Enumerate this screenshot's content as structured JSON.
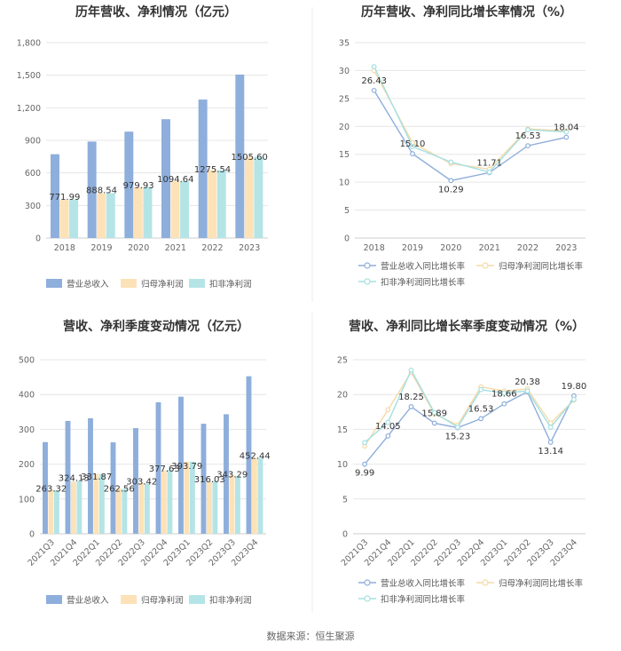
{
  "colors": {
    "revenue": "#8eaedb",
    "net_profit": "#fde2b8",
    "deducted_profit": "#b4e4e6",
    "revenue_line": "#8eaedb",
    "net_profit_line": "#f6d9a6",
    "deducted_profit_line": "#a4e0e3"
  },
  "source_text": "数据来源：恒生聚源",
  "chart_data": [
    {
      "type": "bar",
      "title": "历年营收、净利情况（亿元）",
      "categories": [
        "2018",
        "2019",
        "2020",
        "2021",
        "2022",
        "2023"
      ],
      "ylim": [
        0,
        1800
      ],
      "yticks": [
        0,
        300,
        600,
        900,
        1200,
        1500,
        1800
      ],
      "ytick_labels": [
        "0",
        "300",
        "600",
        "900",
        "1,200",
        "1,500",
        "1,800"
      ],
      "series": [
        {
          "name": "营业总收入",
          "values": [
            771.99,
            888.54,
            979.93,
            1094.64,
            1275.54,
            1505.6
          ]
        },
        {
          "name": "归母净利润",
          "values": [
            352,
            412,
            467,
            525,
            627,
            747
          ]
        },
        {
          "name": "扣非净利润",
          "values": [
            356,
            414,
            470,
            525,
            627,
            748
          ]
        }
      ],
      "data_labels": [
        "771.99",
        "888.54",
        "979.93",
        "1094.64",
        "1275.54",
        "1505.60"
      ]
    },
    {
      "type": "line",
      "title": "历年营收、净利同比增长率情况（%）",
      "categories": [
        "2018",
        "2019",
        "2020",
        "2021",
        "2022",
        "2023"
      ],
      "ylim": [
        0,
        35
      ],
      "yticks": [
        0,
        5,
        10,
        15,
        20,
        25,
        30,
        35
      ],
      "ytick_labels": [
        "0",
        "5",
        "10",
        "15",
        "20",
        "25",
        "30",
        "35"
      ],
      "series": [
        {
          "name": "营业总收入同比增长率",
          "values": [
            26.43,
            15.1,
            10.29,
            11.71,
            16.53,
            18.04
          ]
        },
        {
          "name": "归母净利润同比增长率",
          "values": [
            30.0,
            17.05,
            13.33,
            12.34,
            19.55,
            19.16
          ]
        },
        {
          "name": "扣非净利润同比增长率",
          "values": [
            30.7,
            16.4,
            13.6,
            11.8,
            19.4,
            19.0
          ]
        }
      ],
      "data_labels": [
        "26.43",
        "15.10",
        "10.29",
        "11.71",
        "16.53",
        "18.04"
      ]
    },
    {
      "type": "bar",
      "title": "营收、净利季度变动情况（亿元）",
      "categories": [
        "2021Q3",
        "2021Q4",
        "2022Q1",
        "2022Q2",
        "2022Q3",
        "2022Q4",
        "2023Q1",
        "2023Q2",
        "2023Q3",
        "2023Q4"
      ],
      "ylim": [
        0,
        500
      ],
      "yticks": [
        0,
        100,
        200,
        300,
        400,
        500
      ],
      "ytick_labels": [
        "0",
        "100",
        "200",
        "300",
        "400",
        "500"
      ],
      "series": [
        {
          "name": "营业总收入",
          "values": [
            263.32,
            324.13,
            331.87,
            262.56,
            303.42,
            377.63,
            393.79,
            316.03,
            343.29,
            452.44
          ]
        },
        {
          "name": "归母净利润",
          "values": [
            125,
            150,
            172,
            130,
            146,
            181,
            207,
            150,
            169,
            218
          ]
        },
        {
          "name": "扣非净利润",
          "values": [
            125,
            152,
            171,
            129,
            144,
            184,
            207,
            152,
            166,
            218
          ]
        }
      ],
      "data_labels": [
        "263.32",
        "324.13",
        "331.87",
        "262.56",
        "303.42",
        "377.63",
        "393.79",
        "316.03",
        "343.29",
        "452.44"
      ]
    },
    {
      "type": "line",
      "title": "营收、净利同比增长率季度变动情况（%）",
      "categories": [
        "2021Q3",
        "2021Q4",
        "2022Q1",
        "2022Q2",
        "2022Q3",
        "2022Q4",
        "2023Q1",
        "2023Q2",
        "2023Q3",
        "2023Q4"
      ],
      "ylim": [
        0,
        25
      ],
      "yticks": [
        0,
        5,
        10,
        15,
        20,
        25
      ],
      "ytick_labels": [
        "0",
        "5",
        "10",
        "15",
        "20",
        "25"
      ],
      "series": [
        {
          "name": "营业总收入同比增长率",
          "values": [
            9.99,
            14.05,
            18.25,
            15.89,
            15.23,
            16.53,
            18.66,
            20.38,
            13.14,
            19.8
          ]
        },
        {
          "name": "归母净利润同比增长率",
          "values": [
            12.6,
            17.8,
            23.2,
            17.2,
            15.6,
            21.1,
            20.5,
            20.8,
            15.9,
            19.2
          ]
        },
        {
          "name": "扣非净利润同比增长率",
          "values": [
            13.1,
            16.0,
            23.5,
            17.4,
            15.3,
            20.7,
            20.2,
            20.5,
            15.3,
            19.3
          ]
        }
      ],
      "data_labels": [
        "9.99",
        "14.05",
        "18.25",
        "15.89",
        "15.23",
        "16.53",
        "18.66",
        "20.38",
        "13.14",
        "19.80"
      ]
    }
  ]
}
